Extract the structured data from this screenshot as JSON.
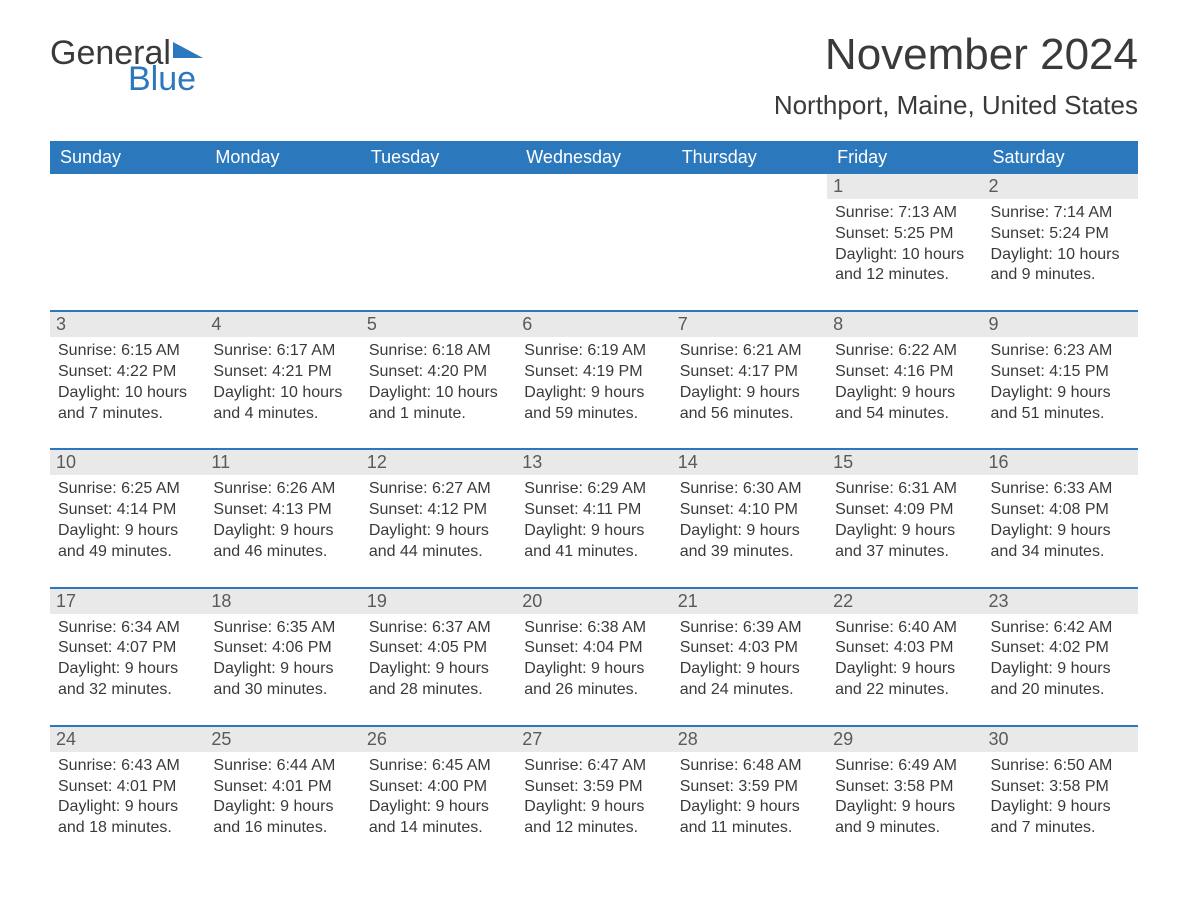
{
  "logo": {
    "word1": "General",
    "word2": "Blue",
    "flag_color": "#2b78bd"
  },
  "title": "November 2024",
  "location": "Northport, Maine, United States",
  "colors": {
    "header_bg": "#2b78bd",
    "header_text": "#ffffff",
    "daynum_bg": "#e9e9e9",
    "border": "#2b78bd",
    "text": "#3a3a3a"
  },
  "day_headers": [
    "Sunday",
    "Monday",
    "Tuesday",
    "Wednesday",
    "Thursday",
    "Friday",
    "Saturday"
  ],
  "weeks": [
    [
      null,
      null,
      null,
      null,
      null,
      {
        "n": "1",
        "sunrise": "Sunrise: 7:13 AM",
        "sunset": "Sunset: 5:25 PM",
        "daylight": "Daylight: 10 hours and 12 minutes."
      },
      {
        "n": "2",
        "sunrise": "Sunrise: 7:14 AM",
        "sunset": "Sunset: 5:24 PM",
        "daylight": "Daylight: 10 hours and 9 minutes."
      }
    ],
    [
      {
        "n": "3",
        "sunrise": "Sunrise: 6:15 AM",
        "sunset": "Sunset: 4:22 PM",
        "daylight": "Daylight: 10 hours and 7 minutes."
      },
      {
        "n": "4",
        "sunrise": "Sunrise: 6:17 AM",
        "sunset": "Sunset: 4:21 PM",
        "daylight": "Daylight: 10 hours and 4 minutes."
      },
      {
        "n": "5",
        "sunrise": "Sunrise: 6:18 AM",
        "sunset": "Sunset: 4:20 PM",
        "daylight": "Daylight: 10 hours and 1 minute."
      },
      {
        "n": "6",
        "sunrise": "Sunrise: 6:19 AM",
        "sunset": "Sunset: 4:19 PM",
        "daylight": "Daylight: 9 hours and 59 minutes."
      },
      {
        "n": "7",
        "sunrise": "Sunrise: 6:21 AM",
        "sunset": "Sunset: 4:17 PM",
        "daylight": "Daylight: 9 hours and 56 minutes."
      },
      {
        "n": "8",
        "sunrise": "Sunrise: 6:22 AM",
        "sunset": "Sunset: 4:16 PM",
        "daylight": "Daylight: 9 hours and 54 minutes."
      },
      {
        "n": "9",
        "sunrise": "Sunrise: 6:23 AM",
        "sunset": "Sunset: 4:15 PM",
        "daylight": "Daylight: 9 hours and 51 minutes."
      }
    ],
    [
      {
        "n": "10",
        "sunrise": "Sunrise: 6:25 AM",
        "sunset": "Sunset: 4:14 PM",
        "daylight": "Daylight: 9 hours and 49 minutes."
      },
      {
        "n": "11",
        "sunrise": "Sunrise: 6:26 AM",
        "sunset": "Sunset: 4:13 PM",
        "daylight": "Daylight: 9 hours and 46 minutes."
      },
      {
        "n": "12",
        "sunrise": "Sunrise: 6:27 AM",
        "sunset": "Sunset: 4:12 PM",
        "daylight": "Daylight: 9 hours and 44 minutes."
      },
      {
        "n": "13",
        "sunrise": "Sunrise: 6:29 AM",
        "sunset": "Sunset: 4:11 PM",
        "daylight": "Daylight: 9 hours and 41 minutes."
      },
      {
        "n": "14",
        "sunrise": "Sunrise: 6:30 AM",
        "sunset": "Sunset: 4:10 PM",
        "daylight": "Daylight: 9 hours and 39 minutes."
      },
      {
        "n": "15",
        "sunrise": "Sunrise: 6:31 AM",
        "sunset": "Sunset: 4:09 PM",
        "daylight": "Daylight: 9 hours and 37 minutes."
      },
      {
        "n": "16",
        "sunrise": "Sunrise: 6:33 AM",
        "sunset": "Sunset: 4:08 PM",
        "daylight": "Daylight: 9 hours and 34 minutes."
      }
    ],
    [
      {
        "n": "17",
        "sunrise": "Sunrise: 6:34 AM",
        "sunset": "Sunset: 4:07 PM",
        "daylight": "Daylight: 9 hours and 32 minutes."
      },
      {
        "n": "18",
        "sunrise": "Sunrise: 6:35 AM",
        "sunset": "Sunset: 4:06 PM",
        "daylight": "Daylight: 9 hours and 30 minutes."
      },
      {
        "n": "19",
        "sunrise": "Sunrise: 6:37 AM",
        "sunset": "Sunset: 4:05 PM",
        "daylight": "Daylight: 9 hours and 28 minutes."
      },
      {
        "n": "20",
        "sunrise": "Sunrise: 6:38 AM",
        "sunset": "Sunset: 4:04 PM",
        "daylight": "Daylight: 9 hours and 26 minutes."
      },
      {
        "n": "21",
        "sunrise": "Sunrise: 6:39 AM",
        "sunset": "Sunset: 4:03 PM",
        "daylight": "Daylight: 9 hours and 24 minutes."
      },
      {
        "n": "22",
        "sunrise": "Sunrise: 6:40 AM",
        "sunset": "Sunset: 4:03 PM",
        "daylight": "Daylight: 9 hours and 22 minutes."
      },
      {
        "n": "23",
        "sunrise": "Sunrise: 6:42 AM",
        "sunset": "Sunset: 4:02 PM",
        "daylight": "Daylight: 9 hours and 20 minutes."
      }
    ],
    [
      {
        "n": "24",
        "sunrise": "Sunrise: 6:43 AM",
        "sunset": "Sunset: 4:01 PM",
        "daylight": "Daylight: 9 hours and 18 minutes."
      },
      {
        "n": "25",
        "sunrise": "Sunrise: 6:44 AM",
        "sunset": "Sunset: 4:01 PM",
        "daylight": "Daylight: 9 hours and 16 minutes."
      },
      {
        "n": "26",
        "sunrise": "Sunrise: 6:45 AM",
        "sunset": "Sunset: 4:00 PM",
        "daylight": "Daylight: 9 hours and 14 minutes."
      },
      {
        "n": "27",
        "sunrise": "Sunrise: 6:47 AM",
        "sunset": "Sunset: 3:59 PM",
        "daylight": "Daylight: 9 hours and 12 minutes."
      },
      {
        "n": "28",
        "sunrise": "Sunrise: 6:48 AM",
        "sunset": "Sunset: 3:59 PM",
        "daylight": "Daylight: 9 hours and 11 minutes."
      },
      {
        "n": "29",
        "sunrise": "Sunrise: 6:49 AM",
        "sunset": "Sunset: 3:58 PM",
        "daylight": "Daylight: 9 hours and 9 minutes."
      },
      {
        "n": "30",
        "sunrise": "Sunrise: 6:50 AM",
        "sunset": "Sunset: 3:58 PM",
        "daylight": "Daylight: 9 hours and 7 minutes."
      }
    ]
  ]
}
